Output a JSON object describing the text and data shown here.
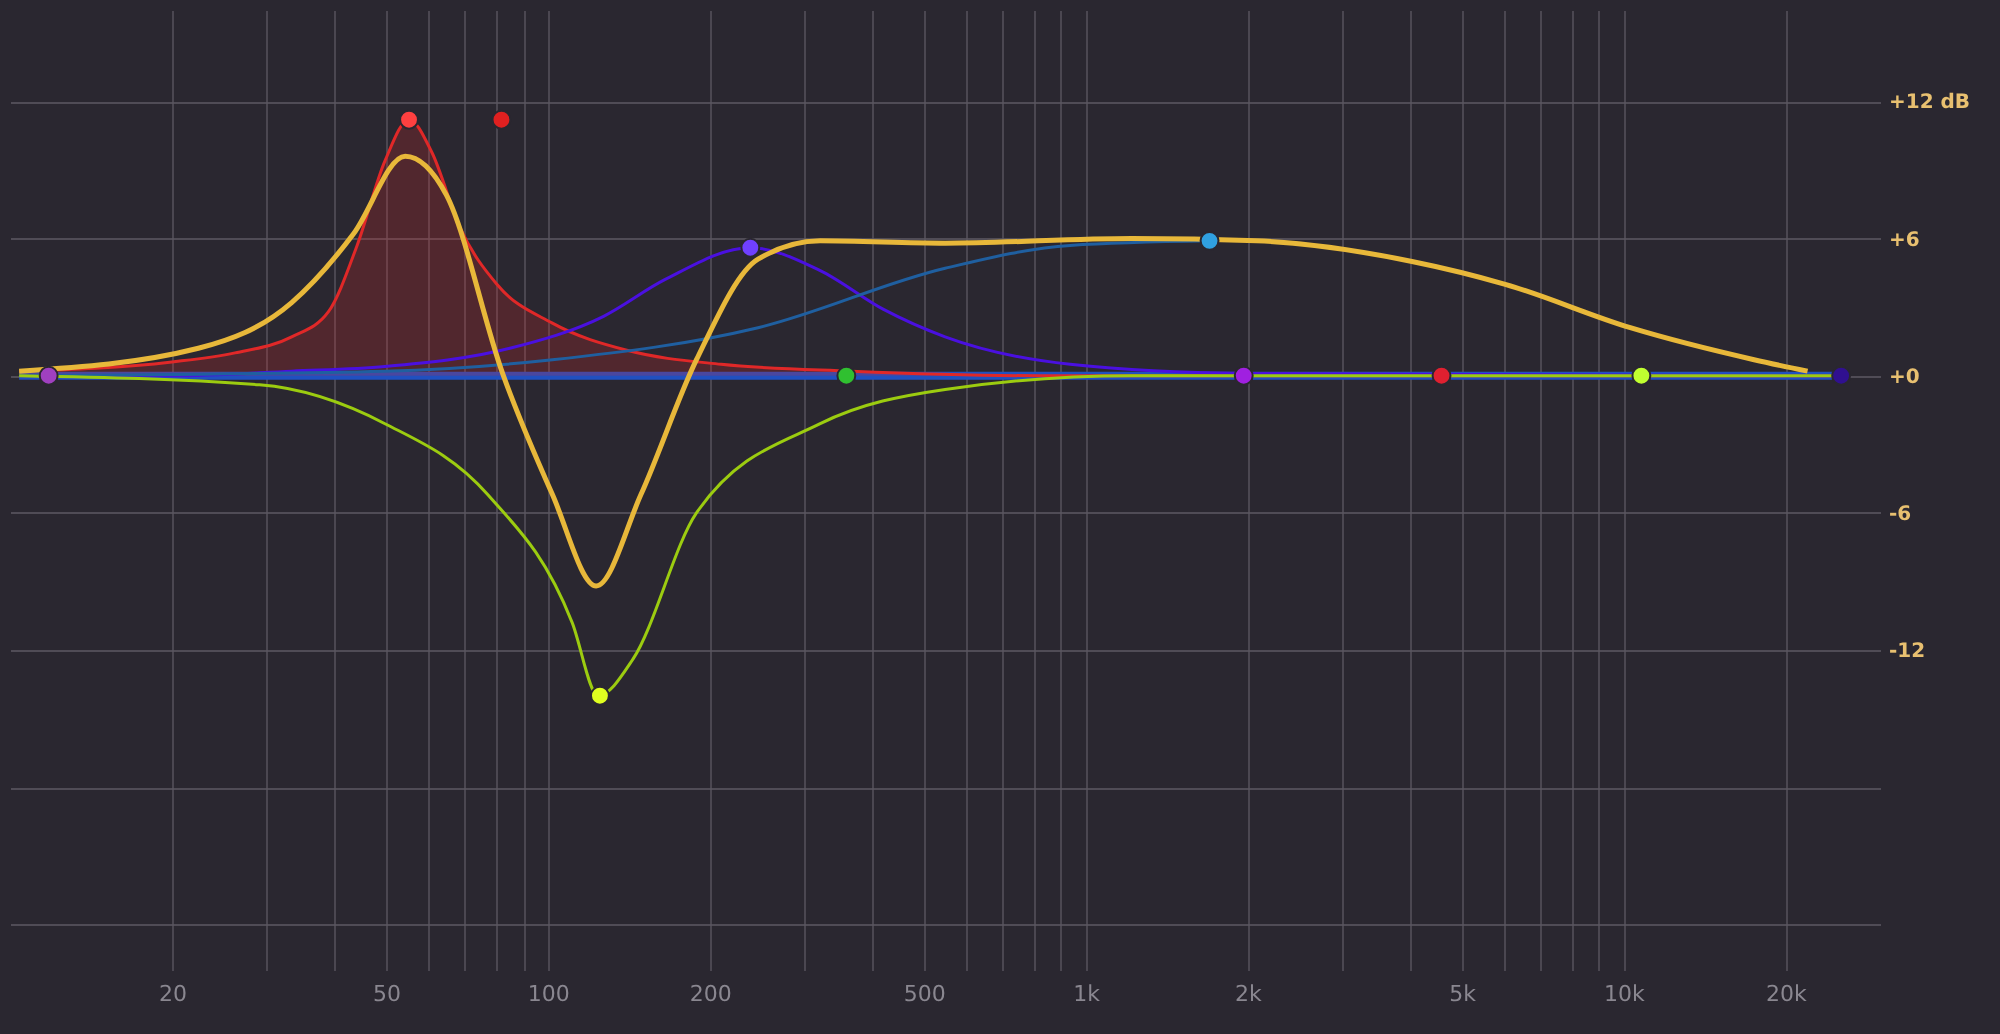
{
  "chart_data": {
    "type": "line",
    "log": "x",
    "grid": true,
    "xlim": [
      10,
      30000
    ],
    "ylim": [
      -26,
      16
    ],
    "xticks": [
      20,
      {
        "value": 30,
        "label": null
      },
      {
        "value": 40,
        "label": null
      },
      50,
      {
        "value": 60,
        "label": null
      },
      {
        "value": 70,
        "label": null
      },
      {
        "value": 80,
        "label": null
      },
      {
        "value": 90,
        "label": null
      },
      100,
      200,
      {
        "value": 300,
        "label": null
      },
      {
        "value": 400,
        "label": null
      },
      500,
      {
        "value": 600,
        "label": null
      },
      {
        "value": 700,
        "label": null
      },
      {
        "value": 800,
        "label": null
      },
      {
        "value": 900,
        "label": null
      },
      {
        "value": 1000,
        "label": "1k"
      },
      {
        "value": 2000,
        "label": "2k"
      },
      {
        "value": 3000,
        "label": null
      },
      {
        "value": 4000,
        "label": null
      },
      {
        "value": 5000,
        "label": "5k"
      },
      {
        "value": 6000,
        "label": null
      },
      {
        "value": 7000,
        "label": null
      },
      {
        "value": 8000,
        "label": null
      },
      {
        "value": 9000,
        "label": null
      },
      {
        "value": 10000,
        "label": "10k"
      },
      {
        "value": 20000,
        "label": "20k"
      }
    ],
    "yticks": [
      {
        "value": 12,
        "label": "+12 dB"
      },
      {
        "value": 6,
        "label": "+6"
      },
      {
        "value": 0,
        "label": "+0"
      },
      -6,
      -12,
      {
        "value": -18,
        "label": null
      },
      {
        "value": -24,
        "label": null
      }
    ],
    "series": [
      {
        "color": "#2050c0",
        "x": [
          10.4,
          100,
          1000,
          10000,
          25400
        ],
        "values": [
          0,
          0,
          0,
          0,
          0
        ]
      },
      {
        "type": "area",
        "color": "#e02828",
        "x": [
          10.4,
          20,
          26.2,
          33.4,
          39.1,
          44.2,
          49.8,
          55.2,
          60.8,
          68.6,
          80.4,
          102,
          141,
          210,
          367,
          817,
          25400
        ],
        "values": [
          0.2,
          0.6,
          1.0,
          1.7,
          2.8,
          5.7,
          9.4,
          11.2,
          9.8,
          6.5,
          4,
          2.3,
          1.1,
          0.5,
          0.2,
          0,
          0
        ]
      },
      {
        "color": "#4a10e0",
        "x": [
          10.4,
          20,
          33.4,
          49.8,
          85,
          127,
          165,
          238,
          321,
          421,
          548,
          936,
          1967,
          25400
        ],
        "values": [
          0,
          0,
          0.2,
          0.4,
          1.2,
          2.6,
          4.2,
          5.6,
          4.6,
          2.9,
          1.7,
          0.5,
          0.1,
          0
        ]
      },
      {
        "color": "#1f5fa0",
        "x": [
          10.4,
          49.8,
          102,
          246,
          548,
          936,
          1700
        ],
        "values": [
          0,
          0.2,
          0.7,
          2.1,
          4.7,
          5.7,
          5.9
        ]
      },
      {
        "color": "#9ccc10",
        "x": [
          10.4,
          29.1,
          49.8,
          77.3,
          111,
          124,
          144,
          189,
          321,
          548,
          1219,
          25400
        ],
        "values": [
          0,
          -0.4,
          -2.1,
          -5.2,
          -10.8,
          -14,
          -12.4,
          -6,
          -2.1,
          -0.6,
          0,
          0
        ]
      },
      {
        "color": "#e8b83a",
        "x": [
          10.4,
          22.4,
          33.4,
          43.5,
          54.3,
          64.8,
          82.4,
          102,
          123,
          149,
          189,
          246,
          321,
          548,
          1219,
          2080,
          4045,
          6030,
          10300,
          17500,
          22000
        ],
        "values": [
          0.2,
          1.2,
          3.2,
          6.2,
          9.6,
          7.9,
          0.1,
          -5.2,
          -9.2,
          -5.2,
          0.7,
          5.1,
          5.9,
          5.8,
          6,
          5.9,
          5.0,
          4,
          2.1,
          0.7,
          0.2
        ]
      },
      {
        "type": "scatter",
        "marker": "circle",
        "x": [
          11.8,
          55.2,
          82,
          125,
          238,
          359,
          1700,
          1968,
          4590,
          10800,
          25400
        ],
        "values": [
          0,
          11.2,
          11.2,
          -14,
          5.6,
          0,
          5.9,
          0,
          0,
          0,
          0
        ],
        "colors": [
          "#a040c0",
          "#ff4040",
          "#e02020",
          "#e0ff20",
          "#7040ff",
          "#30c030",
          "#30a0e0",
          "#a020e0",
          "#e02030",
          "#c0ff30",
          "#301090"
        ]
      }
    ]
  }
}
